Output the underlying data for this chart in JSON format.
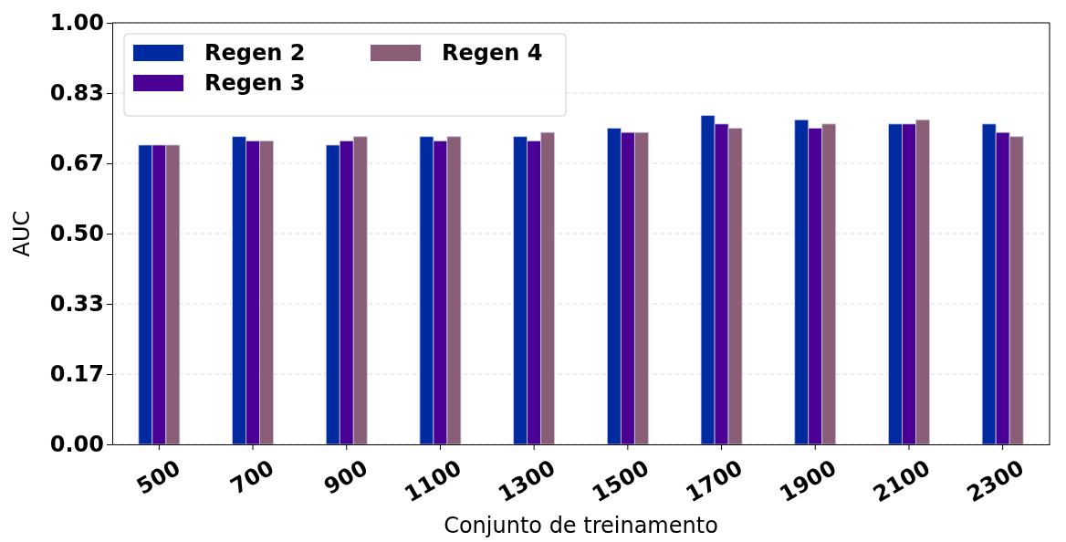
{
  "chart_data": {
    "type": "bar",
    "xlabel": "Conjunto de treinamento",
    "ylabel": "AUC",
    "categories": [
      "500",
      "700",
      "900",
      "1100",
      "1300",
      "1500",
      "1700",
      "1900",
      "2100",
      "2300"
    ],
    "series": [
      {
        "name": "Regen 2",
        "color": "#002ba0",
        "values": [
          0.71,
          0.73,
          0.71,
          0.73,
          0.73,
          0.75,
          0.78,
          0.77,
          0.76,
          0.76
        ]
      },
      {
        "name": "Regen 3",
        "color": "#4b0095",
        "values": [
          0.71,
          0.72,
          0.72,
          0.72,
          0.72,
          0.74,
          0.76,
          0.75,
          0.76,
          0.74
        ]
      },
      {
        "name": "Regen 4",
        "color": "#8b5e77",
        "values": [
          0.71,
          0.72,
          0.73,
          0.73,
          0.74,
          0.74,
          0.75,
          0.76,
          0.77,
          0.73
        ]
      }
    ],
    "ylim": [
      0,
      1
    ],
    "yticks": [
      {
        "value": 0,
        "label": "0.00"
      },
      {
        "value": 0.1667,
        "label": "0.17"
      },
      {
        "value": 0.3333,
        "label": "0.33"
      },
      {
        "value": 0.5,
        "label": "0.50"
      },
      {
        "value": 0.6667,
        "label": "0.67"
      },
      {
        "value": 0.8333,
        "label": "0.83"
      },
      {
        "value": 1,
        "label": "1.00"
      }
    ],
    "grid": "y",
    "legend": "top left"
  }
}
